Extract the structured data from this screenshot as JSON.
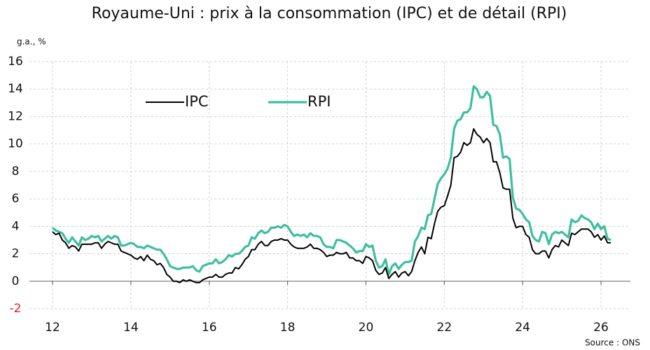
{
  "chart_data": {
    "type": "line",
    "title": "Royaume-Uni : prix à la consommation (IPC) et de détail (RPI)",
    "ylabel": "g.a., %",
    "source": "Source : ONS",
    "x": [
      12,
      12.083,
      12.167,
      12.25,
      12.333,
      12.417,
      12.5,
      12.583,
      12.667,
      12.75,
      12.833,
      12.917,
      13,
      13.083,
      13.167,
      13.25,
      13.333,
      13.417,
      13.5,
      13.583,
      13.667,
      13.75,
      13.833,
      13.917,
      14,
      14.083,
      14.167,
      14.25,
      14.333,
      14.417,
      14.5,
      14.583,
      14.667,
      14.75,
      14.833,
      14.917,
      15,
      15.083,
      15.167,
      15.25,
      15.333,
      15.417,
      15.5,
      15.583,
      15.667,
      15.75,
      15.833,
      15.917,
      16,
      16.083,
      16.167,
      16.25,
      16.333,
      16.417,
      16.5,
      16.583,
      16.667,
      16.75,
      16.833,
      16.917,
      17,
      17.083,
      17.167,
      17.25,
      17.333,
      17.417,
      17.5,
      17.583,
      17.667,
      17.75,
      17.833,
      17.917,
      18,
      18.083,
      18.167,
      18.25,
      18.333,
      18.417,
      18.5,
      18.583,
      18.667,
      18.75,
      18.833,
      18.917,
      19,
      19.083,
      19.167,
      19.25,
      19.333,
      19.417,
      19.5,
      19.583,
      19.667,
      19.75,
      19.833,
      19.917,
      20,
      20.083,
      20.167,
      20.25,
      20.333,
      20.417,
      20.5,
      20.583,
      20.667,
      20.75,
      20.833,
      20.917,
      21,
      21.083,
      21.167,
      21.25,
      21.333,
      21.417,
      21.5,
      21.583,
      21.667,
      21.75,
      21.833,
      21.917,
      22,
      22.083,
      22.167,
      22.25,
      22.333,
      22.417,
      22.5,
      22.583,
      22.667,
      22.75,
      22.833,
      22.917,
      23,
      23.083,
      23.167,
      23.25,
      23.333,
      23.417,
      23.5,
      23.583,
      23.667,
      23.75,
      23.833,
      23.917,
      24,
      24.083,
      24.167,
      24.25,
      24.333,
      24.417,
      24.5,
      24.583,
      24.667,
      24.75,
      24.833,
      24.917,
      25,
      25.083,
      25.167,
      25.25,
      25.333,
      25.417,
      25.5,
      25.583,
      25.667,
      25.75,
      25.833,
      25.917,
      26,
      26.083,
      26.167,
      26.25
    ],
    "series": [
      {
        "name": "IPC",
        "color": "#000000",
        "width": 2,
        "values": [
          3.6,
          3.4,
          3.5,
          3.0,
          2.8,
          2.4,
          2.6,
          2.5,
          2.2,
          2.7,
          2.7,
          2.7,
          2.7,
          2.8,
          2.8,
          2.4,
          2.7,
          2.9,
          2.8,
          2.7,
          2.7,
          2.2,
          2.1,
          2.0,
          1.9,
          1.7,
          1.6,
          1.8,
          1.5,
          1.9,
          1.6,
          1.5,
          1.2,
          1.3,
          1.0,
          0.5,
          0.3,
          0.0,
          0.0,
          -0.1,
          0.1,
          0.0,
          0.1,
          0.0,
          -0.1,
          -0.1,
          0.1,
          0.2,
          0.3,
          0.3,
          0.5,
          0.3,
          0.3,
          0.5,
          0.6,
          0.6,
          1.0,
          0.9,
          1.2,
          1.6,
          1.8,
          2.3,
          2.3,
          2.7,
          2.9,
          2.6,
          2.6,
          2.9,
          3.0,
          3.0,
          3.1,
          3.0,
          3.0,
          2.7,
          2.5,
          2.4,
          2.4,
          2.4,
          2.5,
          2.7,
          2.4,
          2.4,
          2.3,
          2.1,
          1.8,
          1.9,
          1.9,
          2.1,
          2.0,
          2.0,
          2.1,
          1.7,
          1.7,
          1.5,
          1.5,
          1.3,
          1.8,
          1.7,
          1.5,
          0.8,
          0.5,
          0.6,
          1.0,
          0.2,
          0.5,
          0.7,
          0.3,
          0.6,
          0.7,
          0.4,
          0.7,
          1.5,
          2.1,
          2.5,
          2.0,
          3.2,
          3.1,
          4.2,
          5.1,
          5.4,
          5.5,
          6.2,
          7.0,
          9.0,
          9.1,
          9.4,
          10.1,
          9.9,
          10.1,
          11.1,
          10.7,
          10.5,
          10.1,
          10.4,
          10.1,
          8.7,
          8.7,
          7.9,
          6.8,
          6.7,
          6.7,
          4.6,
          3.9,
          4.0,
          4.0,
          3.4,
          3.2,
          2.3,
          2.0,
          2.0,
          2.2,
          2.2,
          1.7,
          2.3,
          2.6,
          2.5,
          3.0,
          2.8,
          2.6,
          3.5,
          3.4,
          3.6,
          3.8,
          3.8,
          3.8,
          3.6,
          3.2,
          3.4,
          3.0,
          3.3,
          2.8,
          2.8
        ]
      },
      {
        "name": "RPI",
        "color": "#3dbf9f",
        "width": 3.2,
        "values": [
          3.9,
          3.7,
          3.6,
          3.5,
          3.1,
          2.8,
          3.2,
          2.9,
          2.6,
          3.2,
          3.0,
          3.1,
          3.3,
          3.2,
          3.3,
          2.9,
          3.1,
          3.3,
          3.1,
          3.3,
          3.2,
          2.6,
          2.6,
          2.7,
          2.8,
          2.7,
          2.5,
          2.5,
          2.4,
          2.6,
          2.5,
          2.4,
          2.3,
          2.3,
          2.0,
          1.6,
          1.1,
          1.0,
          0.9,
          0.9,
          1.0,
          1.0,
          1.0,
          1.1,
          0.8,
          0.7,
          1.1,
          1.2,
          1.3,
          1.3,
          1.6,
          1.3,
          1.4,
          1.6,
          1.9,
          1.8,
          2.0,
          2.0,
          2.2,
          2.5,
          2.6,
          3.2,
          3.1,
          3.5,
          3.7,
          3.5,
          3.6,
          3.9,
          3.9,
          4.0,
          3.9,
          4.1,
          4.0,
          3.6,
          3.3,
          3.4,
          3.3,
          3.4,
          3.2,
          3.5,
          3.3,
          3.3,
          3.2,
          2.7,
          2.5,
          2.5,
          2.4,
          3.0,
          3.0,
          2.9,
          2.8,
          2.6,
          2.4,
          2.1,
          2.2,
          2.2,
          2.7,
          2.5,
          2.6,
          1.5,
          1.0,
          1.1,
          1.6,
          0.5,
          1.1,
          1.3,
          0.9,
          1.2,
          1.4,
          1.4,
          1.5,
          2.9,
          3.3,
          3.9,
          3.8,
          4.8,
          4.9,
          6.0,
          7.1,
          7.5,
          7.8,
          8.2,
          9.0,
          11.1,
          11.7,
          11.8,
          12.3,
          12.3,
          12.6,
          14.2,
          14.0,
          13.4,
          13.4,
          13.8,
          13.5,
          11.4,
          11.3,
          10.7,
          9.0,
          9.1,
          8.9,
          6.1,
          5.3,
          5.2,
          4.9,
          4.5,
          4.3,
          3.3,
          3.0,
          2.9,
          3.6,
          3.5,
          2.7,
          3.4,
          3.6,
          3.5,
          3.6,
          3.4,
          3.2,
          4.5,
          4.3,
          4.4,
          4.8,
          4.6,
          4.5,
          4.3,
          3.8,
          4.2,
          3.8,
          4.0,
          3.1,
          3.0
        ]
      }
    ],
    "xlim": [
      11.41,
      26.75
    ],
    "xticks": [
      12,
      14,
      16,
      18,
      20,
      22,
      24,
      26
    ],
    "ylim": [
      -2,
      16
    ],
    "yticks": [
      -2,
      0,
      2,
      4,
      6,
      8,
      10,
      12,
      14,
      16
    ],
    "grid": true,
    "legend": "upper left",
    "negative_tick_color": "#e02020"
  }
}
